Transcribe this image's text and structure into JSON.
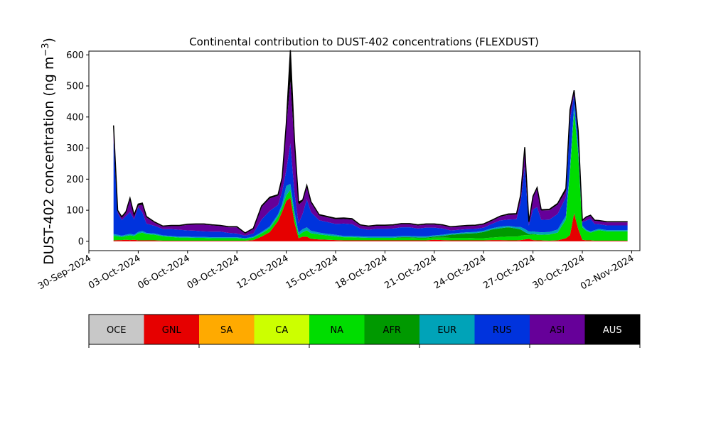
{
  "chart_data": {
    "type": "area",
    "stacked": true,
    "title": "Continental contribution to DUST-402 concentrations (FLEXDUST)",
    "ylabel_main": "DUST-402 concentration (ng m",
    "ylabel_sup": "−3",
    "ylabel_close": ")",
    "xlabel": "",
    "ylim": [
      -30,
      612
    ],
    "xlim": [
      "2024-09-30T00:00",
      "2024-11-02T12:00"
    ],
    "yticks": [
      0,
      100,
      200,
      300,
      400,
      500,
      600
    ],
    "ytick_labels": [
      "0",
      "100",
      "200",
      "300",
      "400",
      "500",
      "600"
    ],
    "xtick_dates": [
      "2024-09-30",
      "2024-10-03",
      "2024-10-06",
      "2024-10-09",
      "2024-10-12",
      "2024-10-15",
      "2024-10-18",
      "2024-10-21",
      "2024-10-24",
      "2024-10-27",
      "2024-10-30",
      "2024-11-02"
    ],
    "xtick_labels": [
      "30-Sep-2024",
      "03-Oct-2024",
      "06-Oct-2024",
      "09-Oct-2024",
      "12-Oct-2024",
      "15-Oct-2024",
      "18-Oct-2024",
      "21-Oct-2024",
      "24-Oct-2024",
      "27-Oct-2024",
      "30-Oct-2024",
      "02-Nov-2024"
    ],
    "grid": false,
    "legend": [
      {
        "label": "OCE",
        "color": "#c8c8c8",
        "text_color": "#000000"
      },
      {
        "label": "GNL",
        "color": "#e60000",
        "text_color": "#000000"
      },
      {
        "label": "SA",
        "color": "#ffaa00",
        "text_color": "#000000"
      },
      {
        "label": "CA",
        "color": "#ccff00",
        "text_color": "#000000"
      },
      {
        "label": "NA",
        "color": "#00dd00",
        "text_color": "#000000"
      },
      {
        "label": "AFR",
        "color": "#009900",
        "text_color": "#000000"
      },
      {
        "label": "EUR",
        "color": "#00a3b8",
        "text_color": "#000000"
      },
      {
        "label": "RUS",
        "color": "#0033dd",
        "text_color": "#000000"
      },
      {
        "label": "ASI",
        "color": "#660099",
        "text_color": "#000000"
      },
      {
        "label": "AUS",
        "color": "#000000",
        "text_color": "#ffffff"
      }
    ],
    "x": [
      "2024-10-01T12:00",
      "2024-10-01T18:00",
      "2024-10-02T00:00",
      "2024-10-02T06:00",
      "2024-10-02T12:00",
      "2024-10-02T18:00",
      "2024-10-03T00:00",
      "2024-10-03T06:00",
      "2024-10-03T12:00",
      "2024-10-04T00:00",
      "2024-10-04T12:00",
      "2024-10-05T00:00",
      "2024-10-05T12:00",
      "2024-10-06T00:00",
      "2024-10-06T12:00",
      "2024-10-07T00:00",
      "2024-10-07T12:00",
      "2024-10-08T00:00",
      "2024-10-08T12:00",
      "2024-10-09T00:00",
      "2024-10-09T12:00",
      "2024-10-10T00:00",
      "2024-10-10T12:00",
      "2024-10-11T00:00",
      "2024-10-11T12:00",
      "2024-10-11T18:00",
      "2024-10-12T00:00",
      "2024-10-12T06:00",
      "2024-10-12T12:00",
      "2024-10-12T18:00",
      "2024-10-13T00:00",
      "2024-10-13T06:00",
      "2024-10-13T12:00",
      "2024-10-14T00:00",
      "2024-10-14T12:00",
      "2024-10-15T00:00",
      "2024-10-15T12:00",
      "2024-10-16T00:00",
      "2024-10-16T12:00",
      "2024-10-17T00:00",
      "2024-10-17T12:00",
      "2024-10-18T00:00",
      "2024-10-18T12:00",
      "2024-10-19T00:00",
      "2024-10-19T12:00",
      "2024-10-20T00:00",
      "2024-10-20T12:00",
      "2024-10-21T00:00",
      "2024-10-21T12:00",
      "2024-10-22T00:00",
      "2024-10-22T12:00",
      "2024-10-23T00:00",
      "2024-10-23T12:00",
      "2024-10-24T00:00",
      "2024-10-24T12:00",
      "2024-10-25T00:00",
      "2024-10-25T12:00",
      "2024-10-26T00:00",
      "2024-10-26T06:00",
      "2024-10-26T12:00",
      "2024-10-26T18:00",
      "2024-10-27T00:00",
      "2024-10-27T06:00",
      "2024-10-27T12:00",
      "2024-10-28T00:00",
      "2024-10-28T12:00",
      "2024-10-29T00:00",
      "2024-10-29T06:00",
      "2024-10-29T12:00",
      "2024-10-29T18:00",
      "2024-10-30T00:00",
      "2024-10-30T06:00",
      "2024-10-30T12:00",
      "2024-10-30T18:00",
      "2024-10-31T00:00",
      "2024-10-31T12:00",
      "2024-11-01T00:00",
      "2024-11-01T12:00",
      "2024-11-01T18:00"
    ],
    "series": [
      {
        "name": "GNL",
        "values": [
          3,
          4,
          4,
          5,
          4,
          5,
          3,
          3,
          3,
          3,
          2,
          2,
          2,
          2,
          2,
          2,
          2,
          2,
          2,
          2,
          2,
          4,
          15,
          30,
          65,
          95,
          130,
          140,
          60,
          10,
          15,
          15,
          8,
          6,
          5,
          4,
          3,
          3,
          3,
          3,
          3,
          3,
          3,
          3,
          3,
          3,
          3,
          5,
          4,
          3,
          3,
          3,
          3,
          3,
          4,
          4,
          3,
          3,
          4,
          6,
          8,
          4,
          3,
          3,
          2,
          3,
          10,
          20,
          90,
          40,
          5,
          3,
          3,
          2,
          2,
          2,
          2,
          2,
          2
        ]
      },
      {
        "name": "NA",
        "values": [
          15,
          12,
          10,
          12,
          15,
          12,
          22,
          25,
          20,
          18,
          14,
          12,
          10,
          10,
          9,
          9,
          8,
          8,
          8,
          8,
          6,
          8,
          10,
          12,
          14,
          15,
          18,
          25,
          20,
          10,
          14,
          20,
          18,
          16,
          14,
          12,
          10,
          10,
          9,
          8,
          8,
          8,
          8,
          8,
          8,
          7,
          7,
          7,
          8,
          8,
          8,
          8,
          7,
          7,
          8,
          10,
          12,
          12,
          14,
          14,
          12,
          18,
          18,
          18,
          20,
          25,
          60,
          200,
          330,
          240,
          40,
          30,
          25,
          30,
          34,
          30,
          30,
          30,
          30
        ]
      },
      {
        "name": "AFR",
        "values": [
          0,
          0,
          0,
          0,
          0,
          0,
          0,
          0,
          0,
          0,
          0,
          0,
          0,
          0,
          0,
          0,
          0,
          0,
          0,
          0,
          0,
          0,
          0,
          0,
          0,
          0,
          0,
          0,
          0,
          0,
          0,
          0,
          0,
          0,
          0,
          0,
          0,
          0,
          0,
          0,
          0,
          0,
          0,
          2,
          2,
          2,
          2,
          3,
          5,
          10,
          12,
          14,
          16,
          20,
          26,
          28,
          30,
          26,
          20,
          10,
          3,
          2,
          1,
          0,
          0,
          0,
          0,
          0,
          0,
          0,
          0,
          0,
          0,
          0,
          0,
          0,
          0,
          0,
          0
        ]
      },
      {
        "name": "EUR",
        "values": [
          5,
          5,
          4,
          4,
          5,
          4,
          5,
          5,
          4,
          4,
          3,
          3,
          3,
          3,
          3,
          3,
          3,
          3,
          3,
          3,
          2,
          3,
          5,
          6,
          8,
          10,
          30,
          20,
          15,
          8,
          10,
          10,
          8,
          6,
          5,
          5,
          4,
          4,
          4,
          4,
          4,
          4,
          4,
          4,
          4,
          4,
          4,
          4,
          4,
          4,
          4,
          4,
          4,
          4,
          4,
          5,
          5,
          5,
          8,
          10,
          8,
          8,
          8,
          8,
          8,
          10,
          12,
          20,
          20,
          20,
          6,
          4,
          4,
          4,
          4,
          4,
          4,
          4,
          4
        ]
      },
      {
        "name": "RUS",
        "values": [
          300,
          70,
          50,
          60,
          70,
          50,
          80,
          60,
          30,
          25,
          20,
          22,
          22,
          20,
          20,
          18,
          18,
          18,
          14,
          12,
          8,
          10,
          40,
          50,
          30,
          40,
          50,
          130,
          60,
          30,
          50,
          90,
          60,
          40,
          38,
          35,
          40,
          38,
          25,
          22,
          25,
          25,
          26,
          28,
          28,
          25,
          28,
          25,
          20,
          10,
          10,
          10,
          10,
          10,
          14,
          20,
          20,
          25,
          80,
          200,
          20,
          70,
          80,
          40,
          40,
          50,
          60,
          150,
          30,
          40,
          10,
          30,
          40,
          20,
          15,
          15,
          15,
          15,
          15
        ]
      },
      {
        "name": "ASI",
        "values": [
          40,
          5,
          8,
          10,
          40,
          10,
          5,
          25,
          20,
          10,
          8,
          10,
          12,
          18,
          20,
          22,
          20,
          18,
          18,
          20,
          8,
          15,
          40,
          40,
          30,
          40,
          140,
          200,
          150,
          60,
          40,
          40,
          30,
          15,
          15,
          15,
          15,
          15,
          10,
          10,
          10,
          10,
          10,
          10,
          10,
          10,
          10,
          10,
          10,
          10,
          10,
          10,
          10,
          10,
          10,
          12,
          15,
          15,
          20,
          60,
          10,
          40,
          60,
          30,
          30,
          30,
          20,
          25,
          10,
          10,
          5,
          10,
          10,
          10,
          10,
          10,
          10,
          10,
          10
        ]
      },
      {
        "name": "AUS",
        "values": [
          10,
          4,
          3,
          4,
          5,
          4,
          5,
          5,
          3,
          2,
          2,
          2,
          2,
          2,
          2,
          2,
          2,
          2,
          2,
          2,
          1,
          2,
          4,
          4,
          3,
          5,
          10,
          100,
          20,
          8,
          4,
          5,
          4,
          3,
          3,
          3,
          3,
          3,
          2,
          2,
          2,
          2,
          2,
          2,
          2,
          2,
          2,
          2,
          2,
          2,
          2,
          2,
          2,
          2,
          2,
          2,
          3,
          3,
          3,
          3,
          2,
          3,
          3,
          3,
          3,
          4,
          8,
          8,
          6,
          5,
          2,
          2,
          2,
          2,
          2,
          2,
          2,
          2,
          2
        ]
      }
    ]
  }
}
